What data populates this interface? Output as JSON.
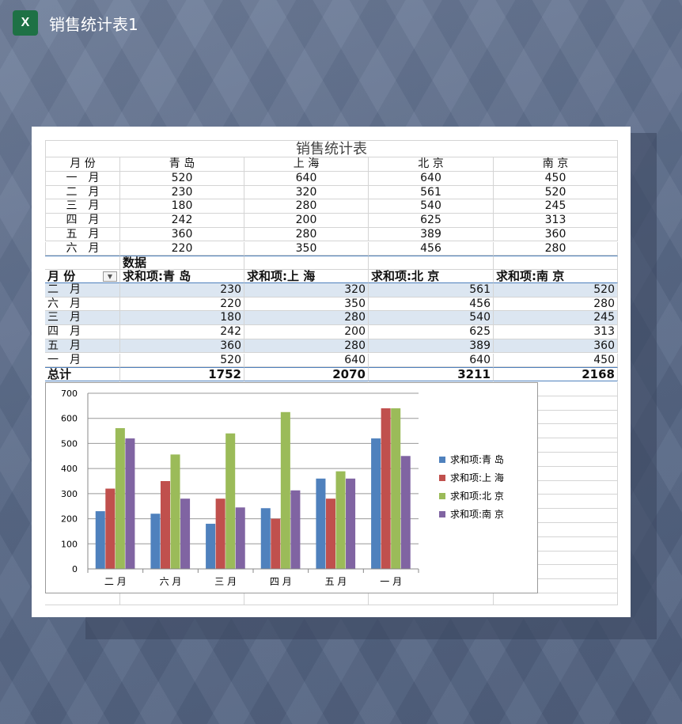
{
  "window": {
    "title": "销售统计表1",
    "app_icon": "excel-icon"
  },
  "sheet": {
    "title": "销售统计表",
    "headers": [
      "月 份",
      "青 岛",
      "上 海",
      "北 京",
      "南 京"
    ],
    "rows": [
      [
        "一　月",
        "520",
        "640",
        "640",
        "450"
      ],
      [
        "二　月",
        "230",
        "320",
        "561",
        "520"
      ],
      [
        "三　月",
        "180",
        "280",
        "540",
        "245"
      ],
      [
        "四　月",
        "242",
        "200",
        "625",
        "313"
      ],
      [
        "五　月",
        "360",
        "280",
        "389",
        "360"
      ],
      [
        "六　月",
        "220",
        "350",
        "456",
        "280"
      ]
    ]
  },
  "pivot": {
    "data_label": "数据",
    "row_field": "月 份",
    "headers": [
      "求和项:青 岛",
      "求和项:上 海",
      "求和项:北 京",
      "求和项:南 京"
    ],
    "rows": [
      [
        "二　月",
        "230",
        "320",
        "561",
        "520"
      ],
      [
        "六　月",
        "220",
        "350",
        "456",
        "280"
      ],
      [
        "三　月",
        "180",
        "280",
        "540",
        "245"
      ],
      [
        "四　月",
        "242",
        "200",
        "625",
        "313"
      ],
      [
        "五　月",
        "360",
        "280",
        "389",
        "360"
      ],
      [
        "一　月",
        "520",
        "640",
        "640",
        "450"
      ]
    ],
    "total": [
      "总计",
      "1752",
      "2070",
      "3211",
      "2168"
    ]
  },
  "chart_data": {
    "type": "bar",
    "categories": [
      "二 月",
      "六 月",
      "三 月",
      "四 月",
      "五 月",
      "一 月"
    ],
    "series": [
      {
        "name": "求和项:青 岛",
        "values": [
          230,
          220,
          180,
          242,
          360,
          520
        ],
        "color": "#4f81bd"
      },
      {
        "name": "求和项:上 海",
        "values": [
          320,
          350,
          280,
          200,
          280,
          640
        ],
        "color": "#c0504d"
      },
      {
        "name": "求和项:北 京",
        "values": [
          561,
          456,
          540,
          625,
          389,
          640
        ],
        "color": "#9bbb59"
      },
      {
        "name": "求和项:南 京",
        "values": [
          520,
          280,
          245,
          313,
          360,
          450
        ],
        "color": "#8064a2"
      }
    ],
    "ylim": [
      0,
      700
    ],
    "yticks": [
      0,
      100,
      200,
      300,
      400,
      500,
      600,
      700
    ],
    "grid": true,
    "legend": "right"
  }
}
